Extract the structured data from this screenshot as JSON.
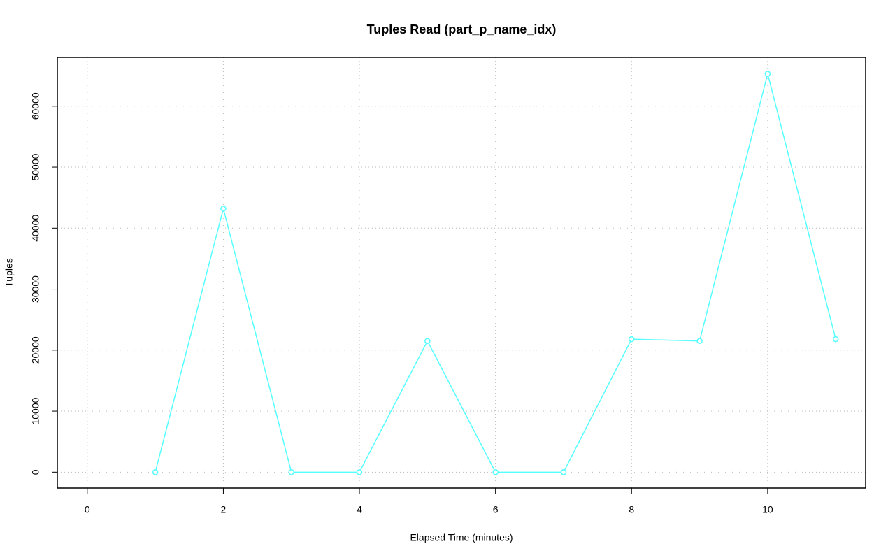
{
  "chart_data": {
    "type": "line",
    "title": "Tuples Read (part_p_name_idx)",
    "x_label": "Elapsed Time (minutes)",
    "y_label": "Tuples",
    "x": [
      1,
      2,
      3,
      4,
      5,
      6,
      7,
      8,
      9,
      10,
      11
    ],
    "series": [
      {
        "name": "Tuples",
        "color": "#55ffff",
        "values": [
          0,
          43200,
          0,
          0,
          21500,
          0,
          0,
          21800,
          21500,
          65300,
          21800
        ]
      }
    ],
    "xlim": [
      -0.44,
      11.44
    ],
    "xticks": [
      0,
      2,
      4,
      6,
      8,
      10
    ],
    "ylim": [
      -2600,
      68000
    ],
    "yticks": [
      0,
      10000,
      20000,
      30000,
      40000,
      50000,
      60000
    ],
    "grid": true
  }
}
